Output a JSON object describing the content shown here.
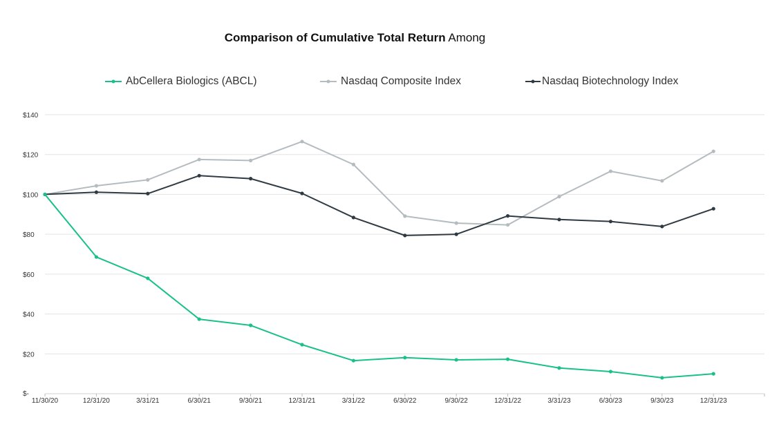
{
  "chart_data": {
    "type": "line",
    "title_bold": "Comparison of Cumulative Total Return",
    "title_rest": "Among",
    "categories": [
      "11/30/20",
      "12/31/20",
      "3/31/21",
      "6/30/21",
      "9/30/21",
      "12/31/21",
      "3/31/22",
      "6/30/22",
      "9/30/22",
      "12/31/22",
      "3/31/23",
      "6/30/23",
      "9/30/23",
      "12/31/23"
    ],
    "ylim": [
      0,
      140
    ],
    "yticks": [
      0,
      20,
      40,
      60,
      80,
      100,
      120,
      140
    ],
    "ytick_labels": [
      "$-",
      "$20",
      "$40",
      "$60",
      "$80",
      "$100",
      "$120",
      "$140"
    ],
    "grid": true,
    "legend_position": "top",
    "series": [
      {
        "name": "AbCellera Biologics (ABCL)",
        "color": "#19c08a",
        "values": [
          100,
          68.6,
          57.9,
          37.4,
          34.3,
          24.6,
          16.6,
          18.1,
          17.0,
          17.3,
          12.9,
          11.1,
          8.0,
          10.0
        ]
      },
      {
        "name": "Nasdaq Composite Index",
        "color": "#b4bcc0",
        "values": [
          100,
          104.3,
          107.3,
          117.5,
          117.0,
          126.5,
          115.0,
          89.1,
          85.6,
          84.7,
          98.9,
          111.6,
          106.8,
          121.6
        ]
      },
      {
        "name": "Nasdaq Biotechnology Index",
        "color": "#2f3a42",
        "values": [
          100,
          101.1,
          100.4,
          109.4,
          107.9,
          100.5,
          88.4,
          79.4,
          80.0,
          89.2,
          87.4,
          86.4,
          83.9,
          92.8
        ]
      }
    ]
  }
}
